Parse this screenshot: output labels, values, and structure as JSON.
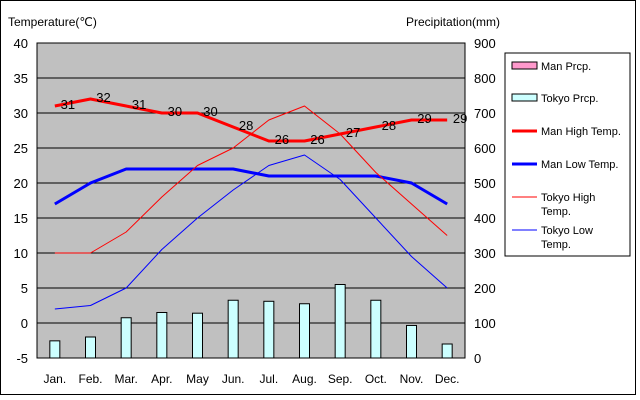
{
  "chart_data": {
    "type": "bar",
    "title": "",
    "ylabel_left": "Temperature(℃)",
    "ylabel_right": "Precipitation(mm)",
    "left_axis": {
      "min": -5,
      "max": 40,
      "step": 5,
      "ticks": [
        "-5",
        "0",
        "5",
        "10",
        "15",
        "20",
        "25",
        "30",
        "35",
        "40"
      ]
    },
    "right_axis": {
      "min": 0,
      "max": 900,
      "step": 100,
      "ticks": [
        "0",
        "100",
        "200",
        "300",
        "400",
        "500",
        "600",
        "700",
        "800",
        "900"
      ]
    },
    "categories": [
      "Jan.",
      "Feb.",
      "Mar.",
      "Apr.",
      "May",
      "Jun.",
      "Jul.",
      "Aug.",
      "Sep.",
      "Oct.",
      "Nov.",
      "Dec."
    ],
    "grid": true,
    "legend_position": "right",
    "series": [
      {
        "name": "Man Prcp.",
        "kind": "bar",
        "axis": "right",
        "color": "#ff99cc",
        "values": [
          0,
          0,
          0,
          0,
          0,
          0,
          0,
          0,
          0,
          0,
          0,
          0
        ]
      },
      {
        "name": "Tokyo Prcp.",
        "kind": "bar",
        "axis": "right",
        "color": "#ccffff",
        "values": [
          49,
          60,
          115,
          130,
          128,
          165,
          162,
          155,
          210,
          165,
          93,
          40
        ]
      },
      {
        "name": "Man High Temp.",
        "kind": "line",
        "axis": "left",
        "color": "#ff0000",
        "width": 3,
        "labels": true,
        "values": [
          31,
          32,
          31,
          30,
          30,
          28,
          26,
          26,
          27,
          28,
          29,
          29
        ]
      },
      {
        "name": "Man Low Temp.",
        "kind": "line",
        "axis": "left",
        "color": "#0000ff",
        "width": 3,
        "labels": false,
        "values": [
          17,
          20,
          22,
          22,
          22,
          22,
          21,
          21,
          21,
          21,
          20,
          17
        ]
      },
      {
        "name": "Tokyo High Temp.",
        "kind": "line",
        "axis": "left",
        "color": "#ff0000",
        "width": 1,
        "labels": false,
        "values": [
          10,
          10,
          13,
          18,
          22.5,
          25,
          29,
          31,
          27,
          21.5,
          17,
          12.5
        ]
      },
      {
        "name": "Tokyo Low Temp.",
        "kind": "line",
        "axis": "left",
        "color": "#0000ff",
        "width": 1,
        "labels": false,
        "values": [
          2,
          2.5,
          5,
          10.5,
          15,
          19,
          22.5,
          24,
          20.5,
          15,
          9.5,
          5
        ]
      }
    ],
    "legend": [
      {
        "lines": [
          "Man Prcp."
        ],
        "series": 0
      },
      {
        "lines": [
          "Tokyo Prcp."
        ],
        "series": 1
      },
      {
        "lines": [
          "Man High Temp."
        ],
        "series": 2
      },
      {
        "lines": [
          "Man Low Temp."
        ],
        "series": 3
      },
      {
        "lines": [
          "Tokyo High",
          "Temp."
        ],
        "series": 4
      },
      {
        "lines": [
          "Tokyo Low",
          "Temp."
        ],
        "series": 5
      }
    ]
  }
}
